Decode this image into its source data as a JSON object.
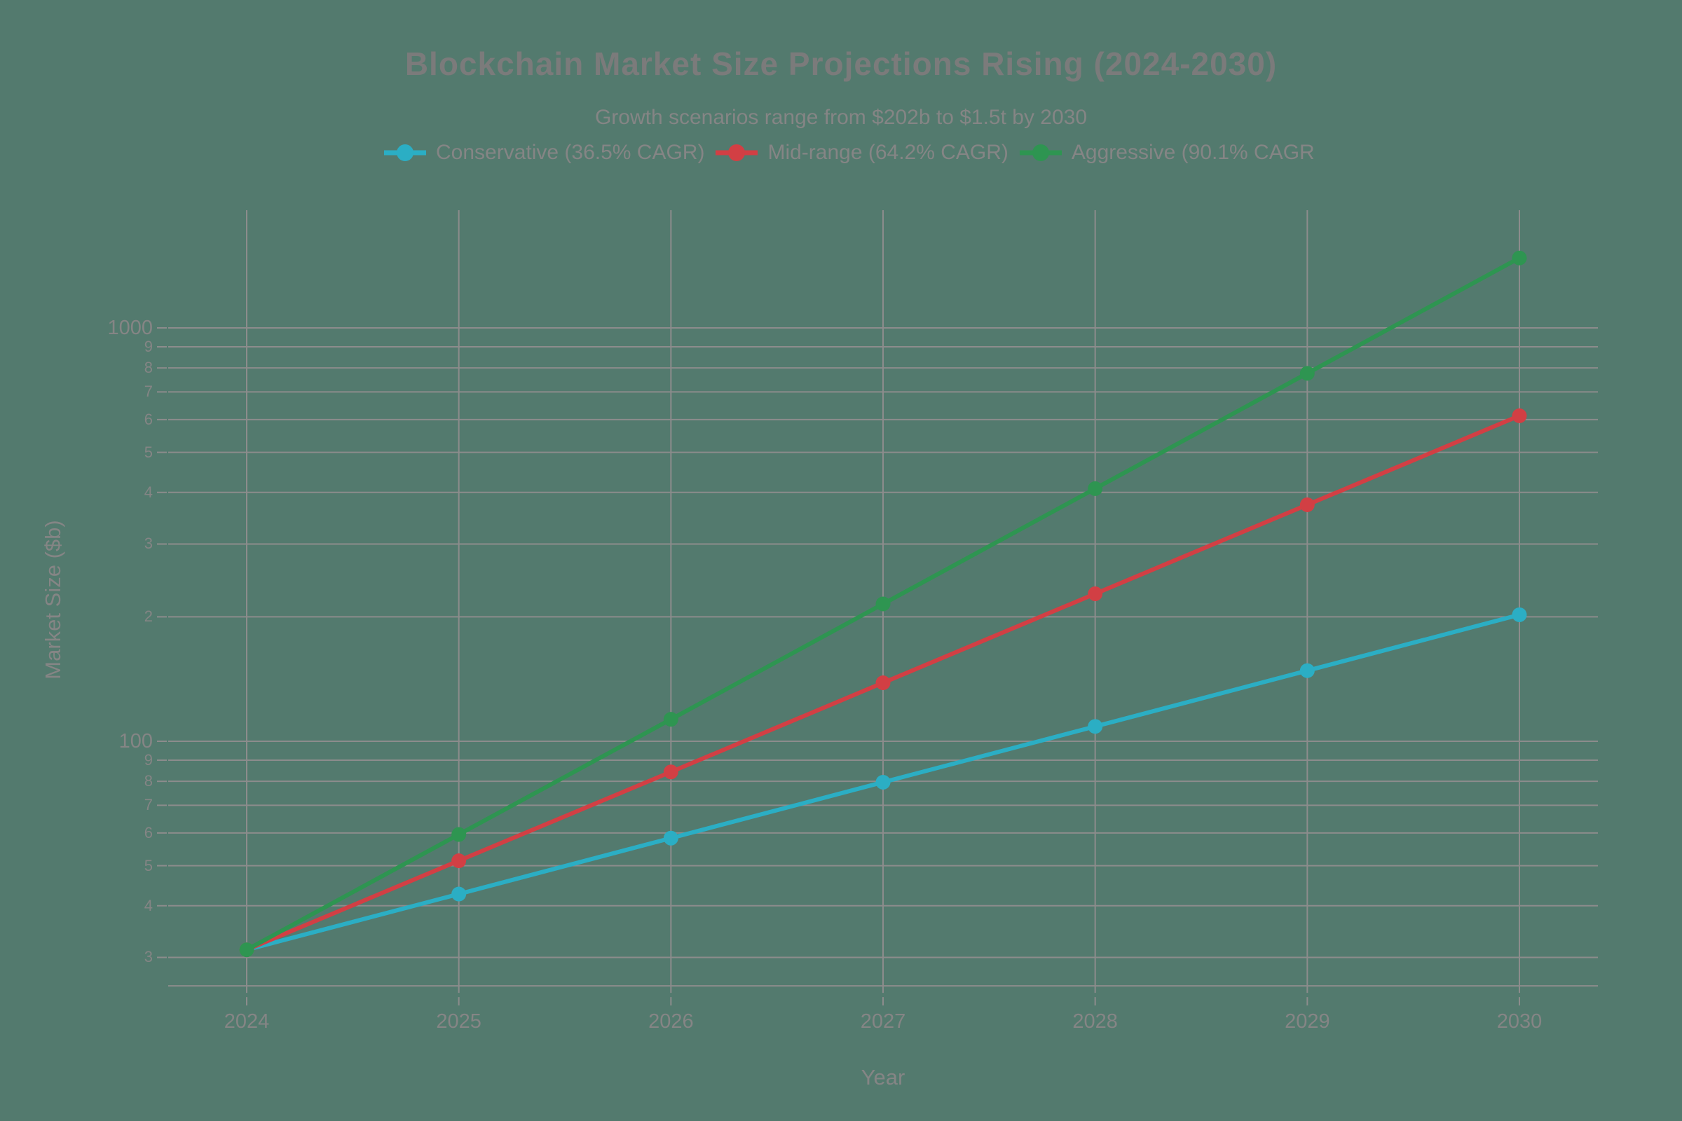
{
  "colors": {
    "background": "#537A6E",
    "gridline": "#8C8C8C",
    "text": "#858585",
    "conservative": "#2BAEC4",
    "mid_range": "#D23F44",
    "aggressive": "#2E9551"
  },
  "header": {
    "title": "Blockchain Market Size Projections Rising (2024-2030)",
    "subtitle": "Growth scenarios range from $202b to $1.5t by 2030"
  },
  "legend": {
    "items": [
      {
        "id": "conservative",
        "label": "Conservative (36.5% CAGR)",
        "color": "#2BAEC4"
      },
      {
        "id": "mid-range",
        "label": "Mid-range (64.2% CAGR)",
        "color": "#D23F44"
      },
      {
        "id": "aggressive",
        "label": "Aggressive (90.1% CAGR",
        "color": "#2E9551"
      }
    ]
  },
  "chart_data": {
    "type": "line",
    "title": "Blockchain Market Size Projections Rising (2024-2030)",
    "subtitle": "Growth scenarios range from $202b to $1.5t by 2030",
    "xlabel": "Year",
    "ylabel": "Market Size ($b)",
    "y_scale": "log",
    "ylim": [
      25.6,
      1926
    ],
    "grid": true,
    "legend_position": "top-center",
    "markers": true,
    "x": [
      2024,
      2025,
      2026,
      2027,
      2028,
      2029,
      2030
    ],
    "series": [
      {
        "name": "Conservative (36.5% CAGR)",
        "color": "#2BAEC4",
        "values": [
          31.3,
          42.7,
          58.3,
          79.6,
          108.6,
          148.2,
          202.3
        ]
      },
      {
        "name": "Mid-range (64.2% CAGR)",
        "color": "#D23F44",
        "values": [
          31.3,
          51.4,
          84.3,
          138.5,
          227.4,
          373.3,
          613.0
        ]
      },
      {
        "name": "Aggressive (90.1% CAGR)",
        "color": "#2E9551",
        "values": [
          31.3,
          59.5,
          113.0,
          214.9,
          408.5,
          776.5,
          1476.1
        ]
      }
    ],
    "x_ticks": [
      {
        "value": 2024,
        "label": "2024"
      },
      {
        "value": 2025,
        "label": "2025"
      },
      {
        "value": 2026,
        "label": "2026"
      },
      {
        "value": 2027,
        "label": "2027"
      },
      {
        "value": 2028,
        "label": "2028"
      },
      {
        "value": 2029,
        "label": "2029"
      },
      {
        "value": 2030,
        "label": "2030"
      }
    ],
    "y_ticks": [
      {
        "value": 1000,
        "label": "1000",
        "major": true
      },
      {
        "value": 900,
        "label": "9",
        "major": false
      },
      {
        "value": 800,
        "label": "8",
        "major": false
      },
      {
        "value": 700,
        "label": "7",
        "major": false
      },
      {
        "value": 600,
        "label": "6",
        "major": false
      },
      {
        "value": 500,
        "label": "5",
        "major": false
      },
      {
        "value": 400,
        "label": "4",
        "major": false
      },
      {
        "value": 300,
        "label": "3",
        "major": false
      },
      {
        "value": 200,
        "label": "2",
        "major": false
      },
      {
        "value": 100,
        "label": "100",
        "major": true
      },
      {
        "value": 90,
        "label": "9",
        "major": false
      },
      {
        "value": 80,
        "label": "8",
        "major": false
      },
      {
        "value": 70,
        "label": "7",
        "major": false
      },
      {
        "value": 60,
        "label": "6",
        "major": false
      },
      {
        "value": 50,
        "label": "5",
        "major": false
      },
      {
        "value": 40,
        "label": "4",
        "major": false
      },
      {
        "value": 30,
        "label": "3",
        "major": false
      }
    ]
  }
}
